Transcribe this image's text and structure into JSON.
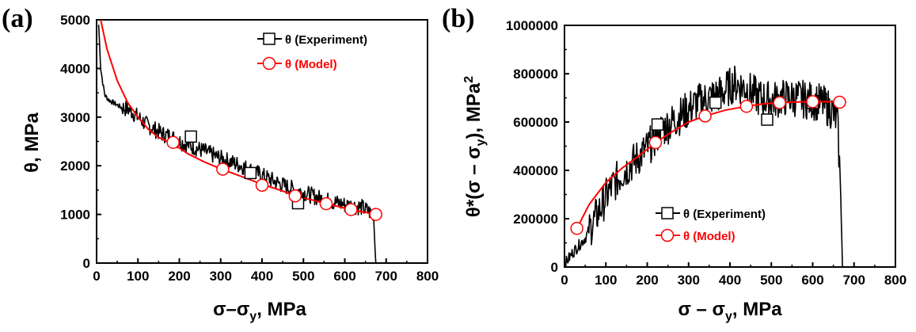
{
  "chart_data": [
    {
      "type": "line",
      "panel_label": "(a)",
      "xlim": [
        0,
        800
      ],
      "ylim": [
        0,
        5000
      ],
      "xticks": [
        "0",
        "100",
        "200",
        "300",
        "400",
        "500",
        "600",
        "700",
        "800"
      ],
      "yticks": [
        "0",
        "1000",
        "2000",
        "3000",
        "4000",
        "5000"
      ],
      "xlabel": "σ–σy, MPa",
      "ylabel": "θ, MPa",
      "legend": {
        "placement": "top-right",
        "entries": [
          {
            "label": "θ (Experiment)",
            "color": "#000000",
            "marker": "square"
          },
          {
            "label": "θ (Model)",
            "color": "#ff0000",
            "marker": "circle"
          }
        ]
      },
      "series": [
        {
          "name": "θ (Experiment)",
          "color": "#000000",
          "x": [
            5,
            10,
            15,
            20,
            30,
            40,
            60,
            80,
            100,
            120,
            140,
            160,
            180,
            200,
            230,
            260,
            300,
            350,
            400,
            450,
            500,
            550,
            600,
            640,
            660,
            670,
            675
          ],
          "y": [
            4900,
            4000,
            3700,
            3450,
            3350,
            3300,
            3200,
            3150,
            3000,
            2850,
            2750,
            2650,
            2600,
            2500,
            2400,
            2300,
            2150,
            2000,
            1800,
            1600,
            1450,
            1300,
            1200,
            1150,
            1050,
            900,
            0
          ],
          "markers": {
            "x": [
              228,
              372,
              487
            ],
            "y": [
              2600,
              1850,
              1230
            ]
          }
        },
        {
          "name": "θ (Model)",
          "color": "#ff0000",
          "x": [
            10,
            25,
            50,
            75,
            100,
            125,
            150,
            185,
            220,
            260,
            305,
            350,
            400,
            450,
            480,
            520,
            555,
            590,
            615,
            645,
            675
          ],
          "y": [
            5000,
            4400,
            3750,
            3300,
            3000,
            2750,
            2580,
            2450,
            2250,
            2080,
            1920,
            1780,
            1620,
            1480,
            1380,
            1300,
            1220,
            1150,
            1100,
            1050,
            1000
          ],
          "markers": {
            "x": [
              185,
              305,
              400,
              480,
              555,
              615,
              675
            ],
            "y": [
              2480,
              1930,
              1600,
              1380,
              1220,
              1100,
              1000
            ]
          }
        }
      ]
    },
    {
      "type": "line",
      "panel_label": "(b)",
      "xlim": [
        0,
        800
      ],
      "ylim": [
        0,
        1000000
      ],
      "xticks": [
        "0",
        "100",
        "200",
        "300",
        "400",
        "500",
        "600",
        "700",
        "800"
      ],
      "yticks": [
        "0",
        "200000",
        "400000",
        "600000",
        "800000",
        "1000000"
      ],
      "xlabel": "σ – σy, MPa",
      "ylabel": "θ*(σ – σy), MPa²",
      "legend": {
        "placement": "bottom-right",
        "entries": [
          {
            "label": "θ (Experiment)",
            "color": "#000000",
            "marker": "square"
          },
          {
            "label": "θ (Model)",
            "color": "#ff0000",
            "marker": "circle"
          }
        ]
      },
      "series": [
        {
          "name": "θ (Experiment)",
          "color": "#000000",
          "x": [
            0,
            20,
            50,
            80,
            110,
            140,
            170,
            200,
            230,
            260,
            290,
            320,
            350,
            380,
            410,
            440,
            470,
            500,
            530,
            560,
            590,
            620,
            645,
            660,
            668,
            672
          ],
          "y": [
            10000,
            60000,
            120000,
            220000,
            320000,
            390000,
            440000,
            490000,
            560000,
            600000,
            640000,
            680000,
            700000,
            720000,
            760000,
            740000,
            700000,
            690000,
            700000,
            700000,
            690000,
            680000,
            650000,
            600000,
            300000,
            0
          ],
          "markers": {
            "x": [
              225,
              365,
              490,
              600
            ],
            "y": [
              590000,
              680000,
              610000,
              680000
            ]
          }
        },
        {
          "name": "θ (Model)",
          "color": "#ff0000",
          "x": [
            30,
            60,
            100,
            140,
            180,
            220,
            260,
            300,
            340,
            390,
            440,
            480,
            520,
            560,
            600,
            640,
            665
          ],
          "y": [
            160000,
            260000,
            350000,
            410000,
            460000,
            515000,
            560000,
            600000,
            625000,
            650000,
            665000,
            675000,
            680000,
            683000,
            684000,
            684000,
            682000
          ],
          "markers": {
            "x": [
              30,
              220,
              340,
              440,
              520,
              600,
              665
            ],
            "y": [
              160000,
              515000,
              625000,
              665000,
              680000,
              684000,
              682000
            ]
          }
        }
      ]
    }
  ]
}
